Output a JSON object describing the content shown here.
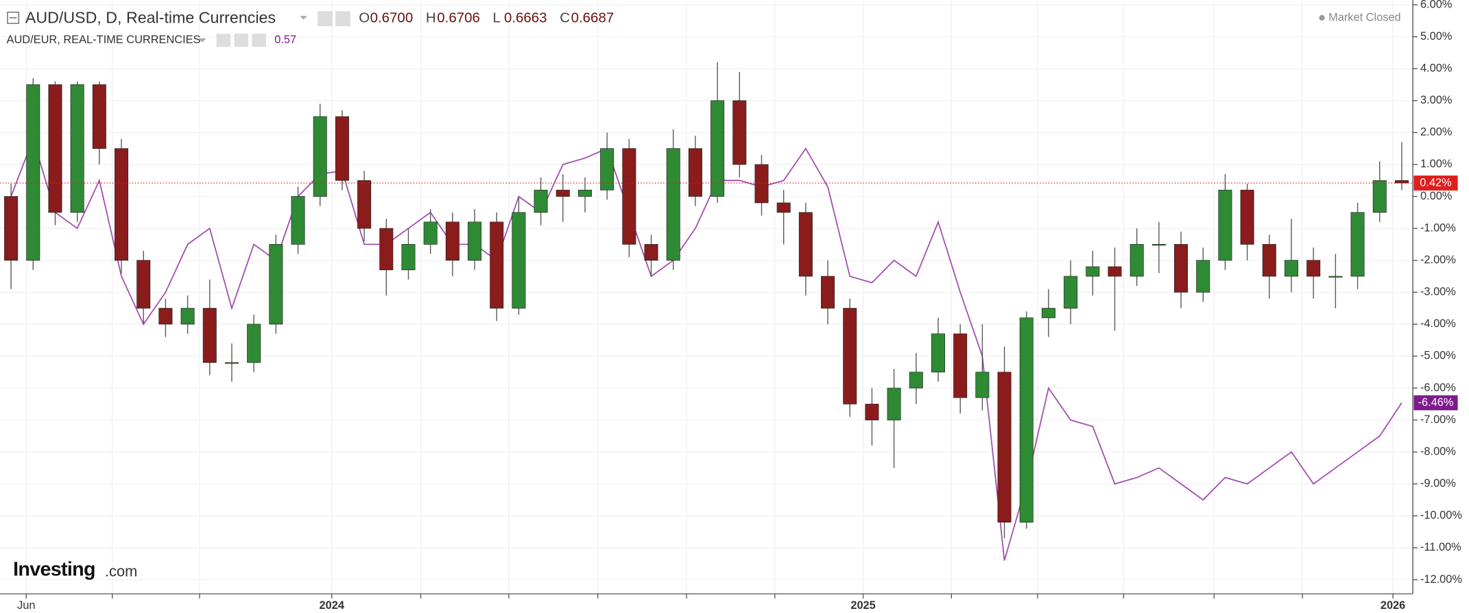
{
  "chart_data": {
    "type": "candlestick",
    "title": "AUD/USD, D, Real-time Currencies",
    "ohlc": [
      {
        "label": "O",
        "value": "0.6700"
      },
      {
        "label": "H",
        "value": "0.6706"
      },
      {
        "label": "L",
        "value": "0.6663"
      },
      {
        "label": "C",
        "value": "0.6687"
      }
    ],
    "status": "Market Closed",
    "logo": {
      "brand": "Investing",
      "suffix": ".com"
    },
    "series": [
      {
        "name": "AUD/USD",
        "type": "candlestick",
        "up_color": "#2e8b34",
        "down_color": "#8b1c1c",
        "line_color": "#e01e1e",
        "last_label": "0.42%",
        "open": [
          0.0,
          -2.0,
          3.5,
          -0.5,
          3.5,
          1.5,
          -2.0,
          -3.5,
          -4.0,
          -3.5,
          -5.2,
          -5.2,
          -4.0,
          -1.5,
          0.0,
          2.5,
          0.5,
          -1.0,
          -2.3,
          -1.5,
          -0.8,
          -2.0,
          -0.8,
          -3.5,
          -0.5,
          0.2,
          0.0,
          0.2,
          1.5,
          -1.5,
          -2.0,
          1.5,
          0.0,
          3.0,
          1.0,
          -0.2,
          -0.5,
          -2.5,
          -3.5,
          -6.5,
          -7.0,
          -6.0,
          -5.5,
          -4.3,
          -6.3,
          -5.5,
          -10.2,
          -3.8,
          -3.5,
          -2.5,
          -2.2,
          -2.5,
          -1.5,
          -1.5,
          -3.0,
          -2.0,
          0.2,
          -1.5,
          -2.5,
          -2.0,
          -2.5,
          -2.5,
          -0.5,
          0.5
        ],
        "high": [
          0.4,
          3.7,
          3.6,
          3.6,
          3.6,
          1.8,
          -1.7,
          -3.2,
          -3.1,
          -2.6,
          -4.6,
          -3.7,
          -1.2,
          0.3,
          2.9,
          2.7,
          0.8,
          -0.7,
          -1.0,
          -0.4,
          -0.5,
          -0.4,
          -0.5,
          0.0,
          0.6,
          0.7,
          0.6,
          2.0,
          1.8,
          -1.2,
          2.1,
          1.9,
          4.2,
          3.9,
          1.3,
          0.2,
          -0.2,
          -2.0,
          -3.2,
          -6.0,
          -5.4,
          -4.9,
          -3.8,
          -4.0,
          -4.0,
          -4.7,
          -3.6,
          -2.9,
          -2.0,
          -1.7,
          -1.6,
          -1.0,
          -0.8,
          -1.1,
          -1.6,
          0.7,
          0.4,
          -1.2,
          -0.7,
          -1.6,
          -1.8,
          -0.2,
          1.1,
          1.7
        ],
        "low": [
          -2.9,
          -2.3,
          -0.9,
          -0.8,
          1.0,
          -2.4,
          -4.0,
          -4.4,
          -4.3,
          -5.6,
          -5.8,
          -5.5,
          -4.3,
          -1.8,
          -0.3,
          0.2,
          -1.4,
          -3.1,
          -2.6,
          -1.8,
          -2.5,
          -2.3,
          -3.9,
          -3.7,
          -0.9,
          -0.8,
          -0.5,
          -0.1,
          -1.9,
          -2.5,
          -2.3,
          -0.3,
          -0.2,
          0.6,
          -0.6,
          -1.5,
          -3.1,
          -4.0,
          -6.9,
          -7.8,
          -8.5,
          -6.5,
          -5.8,
          -6.8,
          -6.7,
          -10.7,
          -10.4,
          -4.4,
          -4.0,
          -3.1,
          -4.2,
          -2.8,
          -2.4,
          -3.5,
          -3.3,
          -2.3,
          -2.0,
          -3.2,
          -3.0,
          -3.2,
          -3.5,
          -2.9,
          -0.8,
          0.2
        ],
        "close": [
          -2.0,
          3.5,
          -0.5,
          3.5,
          1.5,
          -2.0,
          -3.5,
          -4.0,
          -3.5,
          -5.2,
          -5.2,
          -4.0,
          -1.5,
          0.0,
          2.5,
          0.5,
          -1.0,
          -2.3,
          -1.5,
          -0.8,
          -2.0,
          -0.8,
          -3.5,
          -0.5,
          0.2,
          0.0,
          0.2,
          1.5,
          -1.5,
          -2.0,
          1.5,
          0.0,
          3.0,
          1.0,
          -0.2,
          -0.5,
          -2.5,
          -3.5,
          -6.5,
          -7.0,
          -6.0,
          -5.5,
          -4.3,
          -6.3,
          -5.5,
          -10.2,
          -3.8,
          -3.5,
          -2.5,
          -2.2,
          -2.5,
          -1.5,
          -1.5,
          -3.0,
          -2.0,
          0.2,
          -1.5,
          -2.5,
          -2.0,
          -2.5,
          -2.5,
          -0.5,
          0.5,
          0.42
        ]
      },
      {
        "name": "AUD/EUR, REAL-TIME CURRENCIES",
        "type": "line",
        "color": "#a34bb0",
        "box_color": "#7d1a8c",
        "last_value_text": "0.57",
        "last_label": "-6.46%",
        "values": [
          0.0,
          1.8,
          -0.5,
          -1.0,
          0.5,
          -2.5,
          -4.0,
          -3.0,
          -1.5,
          -1.0,
          -3.5,
          -1.5,
          -2.0,
          0.0,
          0.7,
          0.8,
          -1.5,
          -1.5,
          -1.0,
          -0.5,
          -1.5,
          -1.5,
          -2.0,
          0.0,
          -0.5,
          1.0,
          1.2,
          1.5,
          -0.5,
          -2.5,
          -2.0,
          -1.0,
          0.5,
          0.5,
          0.3,
          0.5,
          1.5,
          0.3,
          -2.5,
          -2.7,
          -2.0,
          -2.5,
          -0.8,
          -3.0,
          -5.0,
          -11.4,
          -9.0,
          -6.0,
          -7.0,
          -7.2,
          -9.0,
          -8.8,
          -8.5,
          -9.0,
          -9.5,
          -8.8,
          -9.0,
          -8.5,
          -8.0,
          -9.0,
          -8.5,
          -8.0,
          -7.5,
          -6.46
        ]
      }
    ],
    "xlim": [
      -0.5,
      63.5
    ],
    "xticks": [
      {
        "value": 0.69,
        "label": "Jun"
      },
      {
        "value": 14.53,
        "label": "2024"
      },
      {
        "value": 38.6,
        "label": "2025"
      },
      {
        "value": 62.6,
        "label": "2026"
      }
    ],
    "xminor": [
      4.59,
      8.54,
      18.56,
      22.55,
      26.58,
      30.6,
      34.6,
      42.6,
      46.5,
      50.4,
      54.5,
      58.5
    ],
    "ylim": [
      -12.44,
      6.15
    ],
    "yticks": [
      {
        "value": -12,
        "label": "-12.00%"
      },
      {
        "value": -11,
        "label": "-11.00%"
      },
      {
        "value": -10,
        "label": "-10.00%"
      },
      {
        "value": -9,
        "label": "-9.00%"
      },
      {
        "value": -8,
        "label": "-8.00%"
      },
      {
        "value": -7,
        "label": "-7.00%"
      },
      {
        "value": -6,
        "label": "-6.00%"
      },
      {
        "value": -5,
        "label": "-5.00%"
      },
      {
        "value": -4,
        "label": "-4.00%"
      },
      {
        "value": -3,
        "label": "-3.00%"
      },
      {
        "value": -2,
        "label": "-2.00%"
      },
      {
        "value": -1,
        "label": "-1.00%"
      },
      {
        "value": 0,
        "label": "0.00%"
      },
      {
        "value": 1,
        "label": "1.00%"
      },
      {
        "value": 2,
        "label": "2.00%"
      },
      {
        "value": 3,
        "label": "3.00%"
      },
      {
        "value": 4,
        "label": "4.00%"
      },
      {
        "value": 5,
        "label": "5.00%"
      },
      {
        "value": 6,
        "label": "6.00%"
      }
    ],
    "grid": true
  }
}
